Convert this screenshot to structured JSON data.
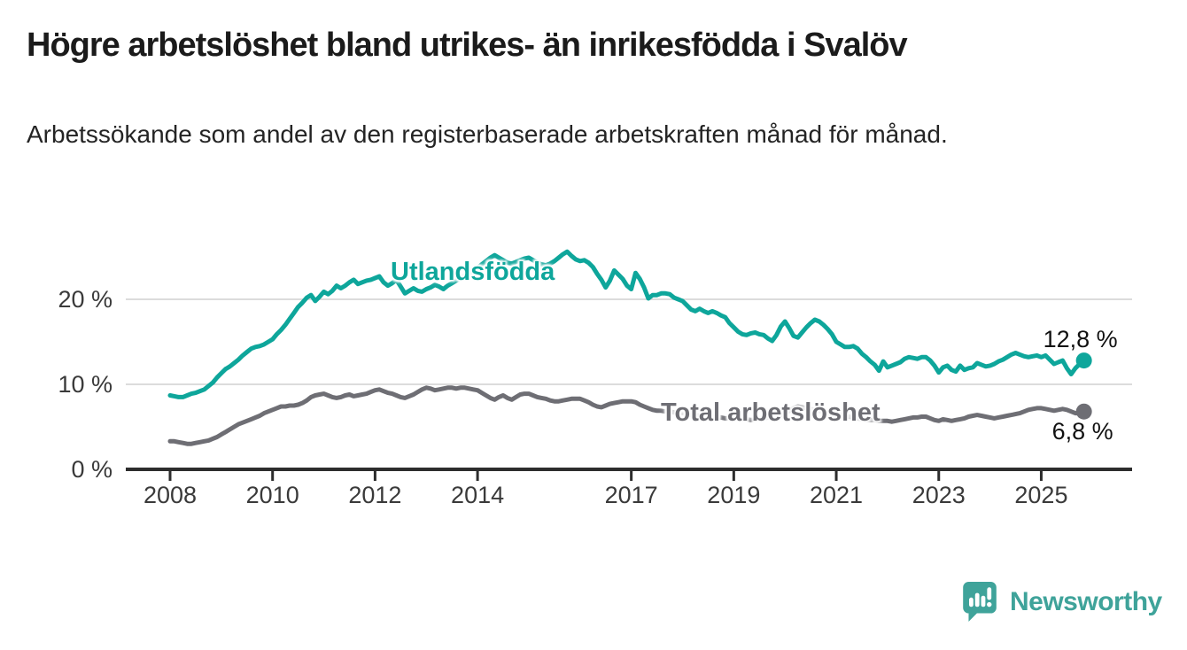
{
  "header": {
    "title": "Högre arbetslöshet bland utrikes- än inrikesfödda i Svalöv",
    "subtitle": "Arbetssökande som andel av den registerbaserade arbetskraften månad för månad."
  },
  "chart_data": {
    "type": "line",
    "title": "Högre arbetslöshet bland utrikes- än inrikesfödda i Svalöv",
    "subtitle": "Arbetssökande som andel av den registerbaserade arbetskraften månad för månad.",
    "xlabel": "",
    "ylabel": "",
    "unit": "%",
    "x_start": "2008-01",
    "x_end": "2025-11",
    "x_interval": "monthly",
    "ylim": [
      0,
      27.5
    ],
    "grid": "horizontal",
    "legend_position": "inline",
    "y_ticks": [
      {
        "label": "20 %",
        "value": 20
      },
      {
        "label": "10 %",
        "value": 10
      },
      {
        "label": "0 %",
        "value": 0
      }
    ],
    "x_ticks": [
      {
        "label": "2008",
        "year": 2008
      },
      {
        "label": "2010",
        "year": 2010
      },
      {
        "label": "2012",
        "year": 2012
      },
      {
        "label": "2014",
        "year": 2014
      },
      {
        "label": "2017",
        "year": 2017
      },
      {
        "label": "2019",
        "year": 2019
      },
      {
        "label": "2021",
        "year": 2021
      },
      {
        "label": "2023",
        "year": 2023
      },
      {
        "label": "2025",
        "year": 2025
      }
    ],
    "series": [
      {
        "name": "Utlandsfödda",
        "color": "#0ea69b",
        "end_label": "12,8 %",
        "end_value": 12.8,
        "values": [
          8.7,
          8.6,
          8.5,
          8.5,
          8.7,
          8.9,
          9.0,
          9.2,
          9.4,
          9.8,
          10.2,
          10.8,
          11.3,
          11.8,
          12.1,
          12.5,
          12.9,
          13.4,
          13.8,
          14.2,
          14.4,
          14.5,
          14.7,
          15.0,
          15.3,
          15.9,
          16.4,
          17.0,
          17.7,
          18.4,
          19.1,
          19.6,
          20.2,
          20.5,
          19.8,
          20.3,
          20.9,
          20.6,
          21.0,
          21.6,
          21.3,
          21.6,
          22.0,
          22.3,
          21.8,
          22.0,
          22.2,
          22.3,
          22.5,
          22.7,
          22.0,
          21.6,
          21.9,
          22.3,
          21.5,
          20.7,
          21.0,
          21.3,
          21.0,
          20.9,
          21.2,
          21.4,
          21.7,
          21.5,
          21.2,
          21.6,
          21.9,
          22.2,
          22.5,
          22.8,
          23.1,
          23.3,
          23.7,
          24.1,
          24.5,
          24.9,
          25.2,
          24.9,
          24.6,
          24.3,
          24.2,
          24.4,
          24.6,
          24.8,
          24.9,
          24.6,
          24.3,
          24.1,
          24.0,
          24.2,
          24.5,
          24.9,
          25.3,
          25.6,
          25.1,
          24.7,
          24.5,
          24.6,
          24.3,
          23.8,
          23.0,
          22.3,
          21.4,
          22.2,
          23.4,
          22.9,
          22.4,
          21.6,
          21.2,
          23.1,
          22.4,
          21.4,
          20.1,
          20.5,
          20.5,
          20.7,
          20.7,
          20.6,
          20.2,
          20.0,
          19.8,
          19.3,
          18.8,
          18.6,
          18.9,
          18.6,
          18.4,
          18.6,
          18.4,
          18.1,
          17.9,
          17.2,
          16.7,
          16.2,
          15.9,
          15.8,
          16.0,
          16.1,
          15.9,
          15.8,
          15.4,
          15.1,
          15.8,
          16.8,
          17.4,
          16.6,
          15.7,
          15.5,
          16.1,
          16.7,
          17.2,
          17.6,
          17.4,
          17.0,
          16.5,
          15.9,
          15.0,
          14.7,
          14.4,
          14.4,
          14.5,
          14.2,
          13.6,
          13.2,
          12.7,
          12.3,
          11.6,
          12.7,
          12.0,
          12.2,
          12.4,
          12.6,
          13.0,
          13.2,
          13.1,
          13.0,
          13.2,
          13.2,
          12.8,
          12.2,
          11.4,
          12.0,
          12.2,
          11.7,
          11.5,
          12.2,
          11.7,
          11.9,
          12.0,
          12.5,
          12.3,
          12.1,
          12.2,
          12.4,
          12.7,
          12.9,
          13.2,
          13.5,
          13.7,
          13.5,
          13.3,
          13.2,
          13.3,
          13.4,
          13.2,
          13.4,
          12.9,
          12.4,
          12.6,
          12.8,
          11.9,
          11.2,
          11.9,
          12.4,
          12.8
        ]
      },
      {
        "name": "Total arbetslöshet",
        "color": "#6e6e74",
        "end_label": "6,8 %",
        "end_value": 6.8,
        "values": [
          3.3,
          3.3,
          3.2,
          3.1,
          3.0,
          3.0,
          3.1,
          3.2,
          3.3,
          3.4,
          3.6,
          3.8,
          4.1,
          4.4,
          4.7,
          5.0,
          5.3,
          5.5,
          5.7,
          5.9,
          6.1,
          6.3,
          6.6,
          6.8,
          7.0,
          7.2,
          7.4,
          7.4,
          7.5,
          7.5,
          7.6,
          7.8,
          8.1,
          8.5,
          8.7,
          8.8,
          8.9,
          8.7,
          8.5,
          8.4,
          8.5,
          8.7,
          8.8,
          8.6,
          8.7,
          8.8,
          8.9,
          9.1,
          9.3,
          9.4,
          9.2,
          9.0,
          8.9,
          8.7,
          8.5,
          8.4,
          8.6,
          8.8,
          9.1,
          9.4,
          9.6,
          9.5,
          9.3,
          9.4,
          9.5,
          9.6,
          9.6,
          9.5,
          9.6,
          9.6,
          9.5,
          9.4,
          9.3,
          9.0,
          8.7,
          8.4,
          8.2,
          8.5,
          8.7,
          8.4,
          8.2,
          8.5,
          8.8,
          8.9,
          8.9,
          8.7,
          8.5,
          8.4,
          8.3,
          8.1,
          8.0,
          8.0,
          8.1,
          8.2,
          8.3,
          8.3,
          8.3,
          8.1,
          7.9,
          7.6,
          7.4,
          7.3,
          7.5,
          7.7,
          7.8,
          7.9,
          8.0,
          8.0,
          8.0,
          7.9,
          7.6,
          7.4,
          7.2,
          7.0,
          6.9,
          6.9,
          6.8,
          6.8,
          6.7,
          6.6,
          6.6,
          6.5,
          6.4,
          6.4,
          6.3,
          6.3,
          6.2,
          6.2,
          6.1,
          6.1,
          6.0,
          6.0,
          6.0,
          5.9,
          5.9,
          5.9,
          5.8,
          5.9,
          6.0,
          6.0,
          6.1,
          6.1,
          6.2,
          6.4,
          6.6,
          6.9,
          7.2,
          7.4,
          7.3,
          7.2,
          7.1,
          7.0,
          6.9,
          6.8,
          6.7,
          6.6,
          6.5,
          6.4,
          6.3,
          6.2,
          6.1,
          6.0,
          5.9,
          5.8,
          5.8,
          5.8,
          5.7,
          5.7,
          5.7,
          5.6,
          5.7,
          5.8,
          5.9,
          6.0,
          6.1,
          6.1,
          6.2,
          6.2,
          6.0,
          5.8,
          5.7,
          5.9,
          5.8,
          5.7,
          5.8,
          5.9,
          6.0,
          6.2,
          6.3,
          6.4,
          6.3,
          6.2,
          6.1,
          6.0,
          6.1,
          6.2,
          6.3,
          6.4,
          6.5,
          6.6,
          6.8,
          7.0,
          7.1,
          7.2,
          7.2,
          7.1,
          7.0,
          6.9,
          7.0,
          7.1,
          7.0,
          6.8,
          6.6,
          6.6,
          6.8
        ]
      }
    ],
    "colors": {
      "foreign_born": "#0ea69b",
      "total": "#6e6e74",
      "gridline": "#dcdcdc",
      "axis": "#2d2d2d",
      "brand_teal": "#3fa39a"
    }
  },
  "footer": {
    "brand": "Newsworthy"
  }
}
